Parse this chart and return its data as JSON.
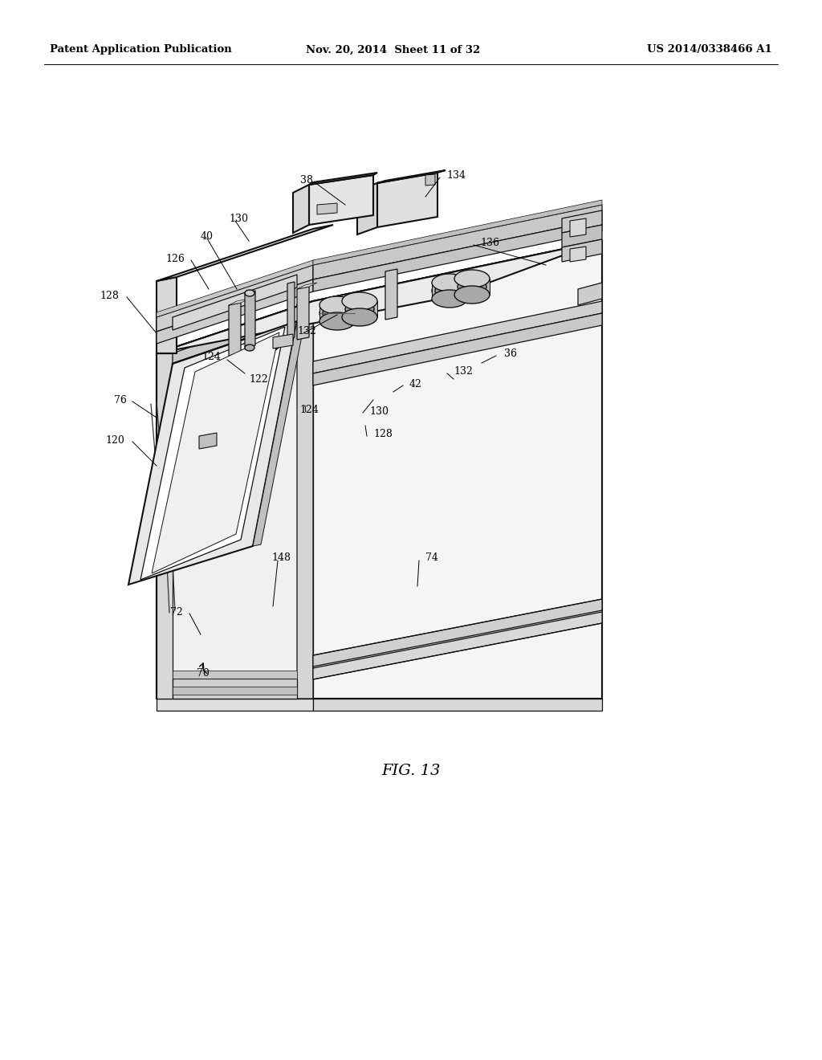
{
  "bg_color": "#ffffff",
  "header_left": "Patent Application Publication",
  "header_mid": "Nov. 20, 2014  Sheet 11 of 32",
  "header_right": "US 2014/0338466 A1",
  "fig_label": "FIG. 13",
  "line_color": "#111111",
  "lw_main": 1.5,
  "lw_thin": 0.9,
  "label_fontsize": 9,
  "fig_fontsize": 14,
  "header_fontsize": 9.5
}
